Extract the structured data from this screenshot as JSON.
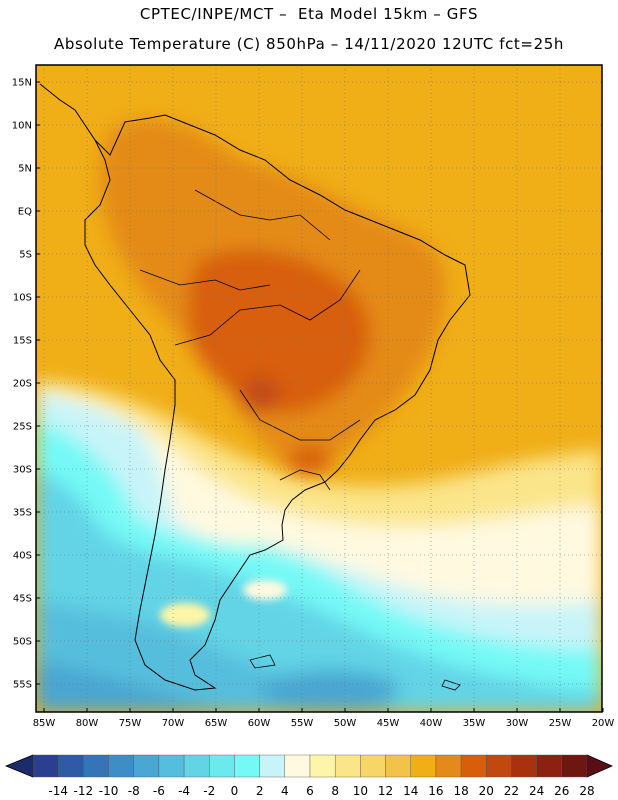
{
  "header": {
    "line1": "CPTEC/INPE/MCT –  Eta Model 15km – GFS",
    "line2": "Absolute Temperature (C) 850hPa – 14/11/2020 12UTC fct=25h"
  },
  "axes": {
    "lat_labels": [
      "15N",
      "10N",
      "5N",
      "EQ",
      "5S",
      "10S",
      "15S",
      "20S",
      "25S",
      "30S",
      "35S",
      "40S",
      "45S",
      "50S",
      "55S"
    ],
    "lon_labels": [
      "85W",
      "80W",
      "75W",
      "70W",
      "65W",
      "60W",
      "55W",
      "50W",
      "45W",
      "40W",
      "35W",
      "30W",
      "25W",
      "20W"
    ]
  },
  "colorbar": {
    "labels": [
      "-14",
      "-12",
      "-10",
      "-8",
      "-6",
      "-4",
      "-2",
      "0",
      "2",
      "4",
      "6",
      "8",
      "10",
      "12",
      "14",
      "16",
      "18",
      "20",
      "22",
      "24",
      "26",
      "28"
    ],
    "colors": [
      "#2a3f8f",
      "#2e5aa6",
      "#3674b8",
      "#3f8dc6",
      "#4aa6d2",
      "#56bedd",
      "#62d4e6",
      "#6ce8ef",
      "#74f9f6",
      "#c7f4f9",
      "#fff9e0",
      "#fff5a8",
      "#fbe58a",
      "#f7d567",
      "#f3c24a",
      "#f0ae17",
      "#e48a18",
      "#d85e0c",
      "#c24812",
      "#a8320e",
      "#8c2110",
      "#6e1610"
    ],
    "under_color": "#1c2c6a",
    "over_color": "#5a0d14"
  }
}
